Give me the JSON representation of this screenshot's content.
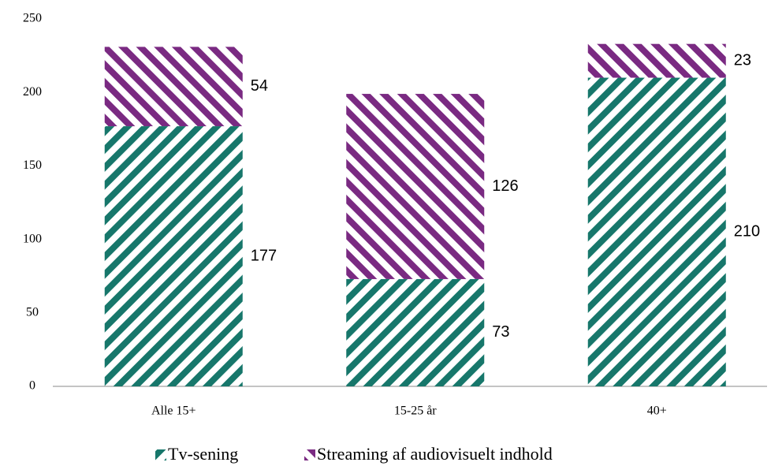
{
  "chart_data": {
    "type": "stacked_bar",
    "categories": [
      "Alle 15+",
      "15-25 år",
      "40+"
    ],
    "series": [
      {
        "name": "Tv-sening",
        "color": "#17776b",
        "values": [
          177,
          73,
          210
        ]
      },
      {
        "name": "Streaming af audiovisuelt indhold",
        "color": "#7a2a82",
        "values": [
          54,
          126,
          23
        ]
      }
    ],
    "ylim": [
      0,
      250
    ],
    "yticks": [
      0,
      50,
      100,
      150,
      200,
      250
    ],
    "grid": false,
    "legend": "bottom"
  }
}
